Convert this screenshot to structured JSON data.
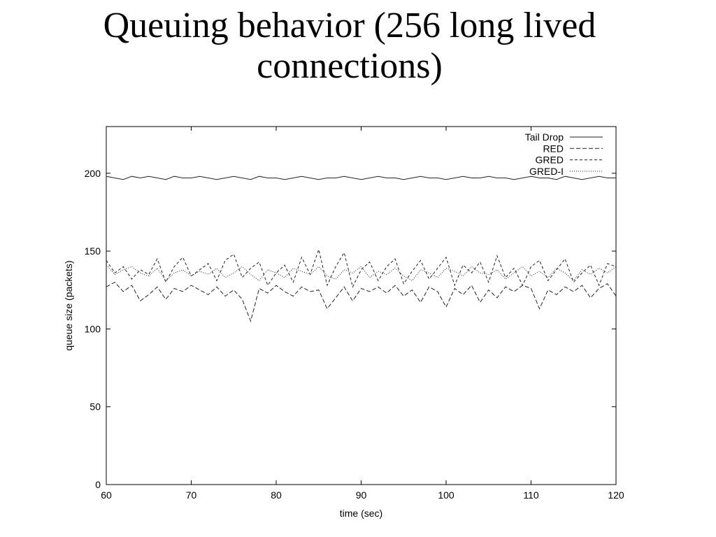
{
  "slide": {
    "title_line1": "Queuing behavior (256 long lived",
    "title_line2": "connections)"
  },
  "chart_data": {
    "type": "line",
    "xlabel": "time (sec)",
    "ylabel": "queue size (packets)",
    "xlim": [
      60,
      120
    ],
    "ylim": [
      0,
      230
    ],
    "xticks": [
      60,
      70,
      80,
      90,
      100,
      110,
      120
    ],
    "yticks": [
      0,
      50,
      100,
      150,
      200
    ],
    "legend_position": "top-right",
    "grid": false,
    "series": [
      {
        "name": "Tail Drop",
        "dash": "solid",
        "x": [
          60,
          61,
          62,
          63,
          64,
          65,
          66,
          67,
          68,
          69,
          70,
          71,
          72,
          73,
          74,
          75,
          76,
          77,
          78,
          79,
          80,
          81,
          82,
          83,
          84,
          85,
          86,
          87,
          88,
          89,
          90,
          91,
          92,
          93,
          94,
          95,
          96,
          97,
          98,
          99,
          100,
          101,
          102,
          103,
          104,
          105,
          106,
          107,
          108,
          109,
          110,
          111,
          112,
          113,
          114,
          115,
          116,
          117,
          118,
          119,
          120
        ],
        "y": [
          198,
          197,
          196,
          198,
          197,
          198,
          197,
          196,
          198,
          197,
          197,
          198,
          197,
          196,
          197,
          198,
          197,
          196,
          198,
          197,
          197,
          196,
          197,
          198,
          197,
          196,
          197,
          197,
          198,
          197,
          196,
          197,
          198,
          197,
          197,
          196,
          197,
          198,
          197,
          197,
          196,
          197,
          198,
          197,
          197,
          198,
          197,
          197,
          196,
          197,
          198,
          197,
          197,
          196,
          198,
          197,
          196,
          197,
          198,
          197,
          197
        ]
      },
      {
        "name": "RED",
        "dash": "6,3",
        "x": [
          60,
          61,
          62,
          63,
          64,
          65,
          66,
          67,
          68,
          69,
          70,
          71,
          72,
          73,
          74,
          75,
          76,
          77,
          78,
          79,
          80,
          81,
          82,
          83,
          84,
          85,
          86,
          87,
          88,
          89,
          90,
          91,
          92,
          93,
          94,
          95,
          96,
          97,
          98,
          99,
          100,
          101,
          102,
          103,
          104,
          105,
          106,
          107,
          108,
          109,
          110,
          111,
          112,
          113,
          114,
          115,
          116,
          117,
          118,
          119,
          120
        ],
        "y": [
          127,
          130,
          124,
          128,
          118,
          122,
          127,
          119,
          126,
          124,
          128,
          125,
          122,
          127,
          121,
          125,
          119,
          105,
          126,
          123,
          128,
          124,
          121,
          127,
          124,
          125,
          113,
          120,
          127,
          118,
          126,
          124,
          127,
          123,
          128,
          121,
          125,
          117,
          127,
          124,
          114,
          126,
          122,
          128,
          117,
          125,
          120,
          127,
          124,
          128,
          126,
          113,
          125,
          122,
          127,
          124,
          128,
          120,
          126,
          129,
          121
        ]
      },
      {
        "name": "GRED",
        "dash": "4,3",
        "x": [
          60,
          61,
          62,
          63,
          64,
          65,
          66,
          67,
          68,
          69,
          70,
          71,
          72,
          73,
          74,
          75,
          76,
          77,
          78,
          79,
          80,
          81,
          82,
          83,
          84,
          85,
          86,
          87,
          88,
          89,
          90,
          91,
          92,
          93,
          94,
          95,
          96,
          97,
          98,
          99,
          100,
          101,
          102,
          103,
          104,
          105,
          106,
          107,
          108,
          109,
          110,
          111,
          112,
          113,
          114,
          115,
          116,
          117,
          118,
          119,
          120
        ],
        "y": [
          144,
          136,
          140,
          132,
          138,
          135,
          145,
          130,
          140,
          146,
          134,
          138,
          142,
          131,
          144,
          148,
          133,
          139,
          143,
          128,
          136,
          141,
          130,
          146,
          135,
          151,
          128,
          140,
          149,
          127,
          138,
          143,
          131,
          140,
          145,
          129,
          137,
          144,
          132,
          139,
          146,
          128,
          141,
          136,
          143,
          130,
          147,
          133,
          139,
          128,
          140,
          144,
          131,
          138,
          145,
          130,
          136,
          141,
          128,
          142,
          140
        ]
      },
      {
        "name": "GRED-I",
        "dash": "1,2",
        "x": [
          60,
          61,
          62,
          63,
          64,
          65,
          66,
          67,
          68,
          69,
          70,
          71,
          72,
          73,
          74,
          75,
          76,
          77,
          78,
          79,
          80,
          81,
          82,
          83,
          84,
          85,
          86,
          87,
          88,
          89,
          90,
          91,
          92,
          93,
          94,
          95,
          96,
          97,
          98,
          99,
          100,
          101,
          102,
          103,
          104,
          105,
          106,
          107,
          108,
          109,
          110,
          111,
          112,
          113,
          114,
          115,
          116,
          117,
          118,
          119,
          120
        ],
        "y": [
          141,
          135,
          138,
          140,
          136,
          134,
          139,
          131,
          136,
          138,
          134,
          137,
          135,
          139,
          133,
          136,
          140,
          135,
          131,
          138,
          136,
          133,
          139,
          137,
          135,
          140,
          134,
          132,
          138,
          136,
          140,
          133,
          137,
          135,
          139,
          134,
          131,
          138,
          136,
          133,
          139,
          137,
          134,
          140,
          136,
          135,
          138,
          132,
          136,
          140,
          134,
          137,
          133,
          139,
          136,
          131,
          138,
          135,
          139,
          136,
          140
        ]
      }
    ]
  }
}
